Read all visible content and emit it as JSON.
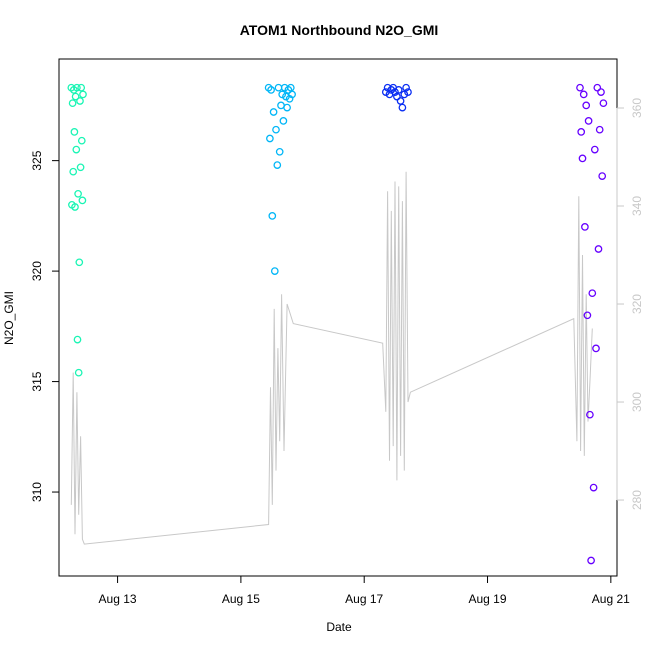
{
  "chart_data": {
    "type": "scatter",
    "title": "ATOM1 Northbound N2O_GMI",
    "xlabel": "Date",
    "ylabel": "N2O_GMI",
    "x_unit": "days since Aug 12 00:00",
    "xlim": [
      12.05,
      21.1
    ],
    "ylim": [
      306.2,
      329.6
    ],
    "y2lim": [
      264.5,
      370.0
    ],
    "x_ticks": [
      {
        "value": 13,
        "label": "Aug 13"
      },
      {
        "value": 15,
        "label": "Aug 15"
      },
      {
        "value": 17,
        "label": "Aug 17"
      },
      {
        "value": 19,
        "label": "Aug 19"
      },
      {
        "value": 21,
        "label": "Aug 21"
      }
    ],
    "y_ticks": [
      310,
      315,
      320,
      325
    ],
    "y2_ticks": [
      280,
      300,
      320,
      340,
      360
    ],
    "grid": false,
    "legend": "none",
    "colors": {
      "flight1": "#19f5b4",
      "flight2": "#00b6f7",
      "flight3": "#0a2ef3",
      "flight4": "#6600ff",
      "secondary_line": "#c8c8c8",
      "axis": "#000000",
      "right_axis": "#c8c8c8"
    },
    "series": [
      {
        "color": "#19f5b4",
        "x": [
          12.25,
          12.26,
          12.27,
          12.28,
          12.29,
          12.3,
          12.31,
          12.32,
          12.33,
          12.34,
          12.35,
          12.36,
          12.37,
          12.38,
          12.39,
          12.4,
          12.41,
          12.42,
          12.43,
          12.44
        ],
        "y": [
          328.3,
          323.0,
          327.6,
          324.5,
          328.2,
          326.3,
          322.9,
          327.9,
          325.5,
          328.3,
          316.9,
          323.5,
          315.4,
          320.4,
          327.7,
          324.7,
          328.3,
          325.9,
          323.2,
          328.0
        ]
      },
      {
        "color": "#00b6f7",
        "x": [
          15.45,
          15.47,
          15.49,
          15.51,
          15.53,
          15.55,
          15.57,
          15.59,
          15.61,
          15.63,
          15.65,
          15.67,
          15.69,
          15.71,
          15.73,
          15.75,
          15.77,
          15.79,
          15.81,
          15.83
        ],
        "y": [
          328.3,
          326.0,
          328.2,
          322.5,
          327.2,
          320.0,
          326.4,
          324.8,
          328.3,
          325.4,
          327.5,
          328.0,
          326.8,
          328.3,
          327.9,
          327.4,
          328.2,
          327.8,
          328.3,
          328.0
        ]
      },
      {
        "color": "#0a2ef3",
        "x": [
          17.35,
          17.38,
          17.41,
          17.44,
          17.47,
          17.5,
          17.53,
          17.56,
          17.59,
          17.62,
          17.65,
          17.68,
          17.71
        ],
        "y": [
          328.1,
          328.3,
          328.0,
          328.2,
          328.3,
          328.1,
          327.9,
          328.2,
          327.7,
          327.4,
          328.0,
          328.3,
          328.1
        ]
      },
      {
        "color": "#6600ff",
        "x": [
          20.5,
          20.52,
          20.54,
          20.56,
          20.58,
          20.6,
          20.62,
          20.64,
          20.66,
          20.68,
          20.7,
          20.72,
          20.74,
          20.76,
          20.78,
          20.8,
          20.82,
          20.84,
          20.86,
          20.88
        ],
        "y": [
          328.3,
          326.3,
          325.1,
          328.0,
          322.0,
          327.5,
          318.0,
          326.8,
          313.5,
          306.9,
          319.0,
          310.2,
          325.5,
          316.5,
          328.3,
          321.0,
          326.4,
          328.1,
          324.3,
          327.6
        ]
      }
    ],
    "secondary_series": {
      "color": "#c8c8c8",
      "axis": "right",
      "x": [
        12.25,
        12.28,
        12.31,
        12.34,
        12.37,
        12.4,
        12.43,
        12.46,
        15.45,
        15.48,
        15.51,
        15.54,
        15.57,
        15.6,
        15.63,
        15.66,
        15.7,
        15.75,
        15.85,
        17.3,
        17.35,
        17.38,
        17.41,
        17.44,
        17.47,
        17.5,
        17.53,
        17.56,
        17.59,
        17.62,
        17.65,
        17.68,
        17.71,
        17.75,
        20.4,
        20.45,
        20.48,
        20.51,
        20.54,
        20.57,
        20.6,
        20.63,
        20.66,
        20.7
      ],
      "y": [
        279,
        306,
        273,
        302,
        277,
        293,
        272,
        271,
        275,
        303,
        279,
        319,
        286,
        311,
        292,
        322,
        290,
        320,
        316,
        312,
        298,
        343,
        288,
        339,
        291,
        345,
        284,
        344,
        289,
        341,
        286,
        347,
        300,
        302,
        317,
        292,
        342,
        290,
        330,
        289,
        322,
        296,
        304,
        315
      ]
    }
  }
}
